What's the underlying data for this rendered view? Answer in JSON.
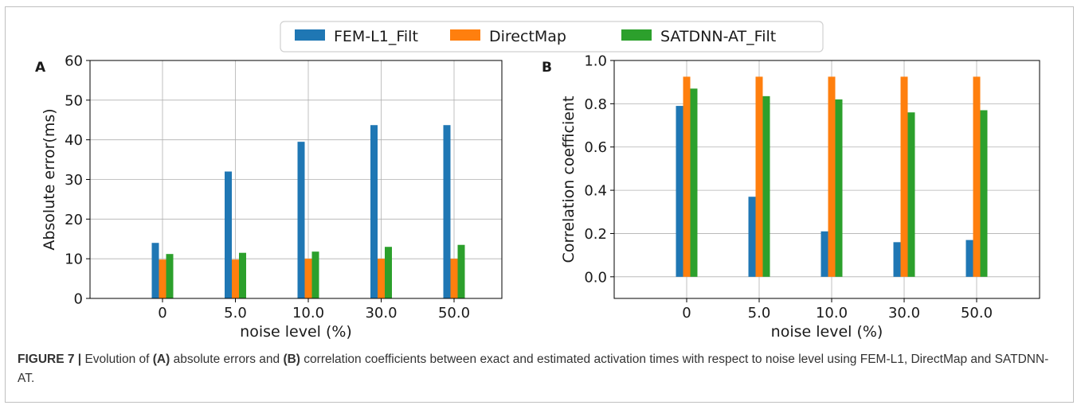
{
  "legend": [
    {
      "label": "FEM-L1_Filt",
      "color": "#1f77b4"
    },
    {
      "label": "DirectMap",
      "color": "#ff7f0e"
    },
    {
      "label": "SATDNN-AT_Filt",
      "color": "#2ca02c"
    }
  ],
  "chart_data": [
    {
      "type": "bar",
      "panel_label": "A",
      "categories": [
        "0",
        "5.0",
        "10.0",
        "30.0",
        "50.0"
      ],
      "xlabel": "noise level (%)",
      "ylabel": "Absolute error(ms)",
      "ylim": [
        0,
        60
      ],
      "yticks": [
        0,
        10,
        20,
        30,
        40,
        50,
        60
      ],
      "ytick_labels": [
        "0",
        "10",
        "20",
        "30",
        "40",
        "50",
        "60"
      ],
      "grid": true,
      "series": [
        {
          "name": "FEM-L1_Filt",
          "color": "#1f77b4",
          "values": [
            14.0,
            32.0,
            39.5,
            43.7,
            43.7
          ]
        },
        {
          "name": "DirectMap",
          "color": "#ff7f0e",
          "values": [
            9.8,
            9.8,
            10.0,
            10.0,
            10.0
          ]
        },
        {
          "name": "SATDNN-AT_Filt",
          "color": "#2ca02c",
          "values": [
            11.2,
            11.5,
            11.8,
            13.0,
            13.5
          ]
        }
      ]
    },
    {
      "type": "bar",
      "panel_label": "B",
      "categories": [
        "0",
        "5.0",
        "10.0",
        "30.0",
        "50.0"
      ],
      "xlabel": "noise level (%)",
      "ylabel": "Correlation coefficient",
      "ylim": [
        -0.1,
        1.0
      ],
      "yticks": [
        0.0,
        0.2,
        0.4,
        0.6,
        0.8,
        1.0
      ],
      "ytick_labels": [
        "0.0",
        "0.2",
        "0.4",
        "0.6",
        "0.8",
        "1.0"
      ],
      "grid": true,
      "series": [
        {
          "name": "FEM-L1_Filt",
          "color": "#1f77b4",
          "values": [
            0.79,
            0.37,
            0.21,
            0.16,
            0.17
          ]
        },
        {
          "name": "DirectMap",
          "color": "#ff7f0e",
          "values": [
            0.925,
            0.925,
            0.925,
            0.925,
            0.925
          ]
        },
        {
          "name": "SATDNN-AT_Filt",
          "color": "#2ca02c",
          "values": [
            0.87,
            0.835,
            0.82,
            0.76,
            0.77
          ]
        }
      ]
    }
  ],
  "caption": {
    "figure_label": "FIGURE 7 |",
    "text_1": " Evolution of ",
    "ref_a": "(A)",
    "text_2": " absolute errors and ",
    "ref_b": "(B)",
    "text_3": " correlation coefficients between exact and estimated activation times with respect to noise level using FEM-L1, DirectMap and SATDNN-AT."
  }
}
